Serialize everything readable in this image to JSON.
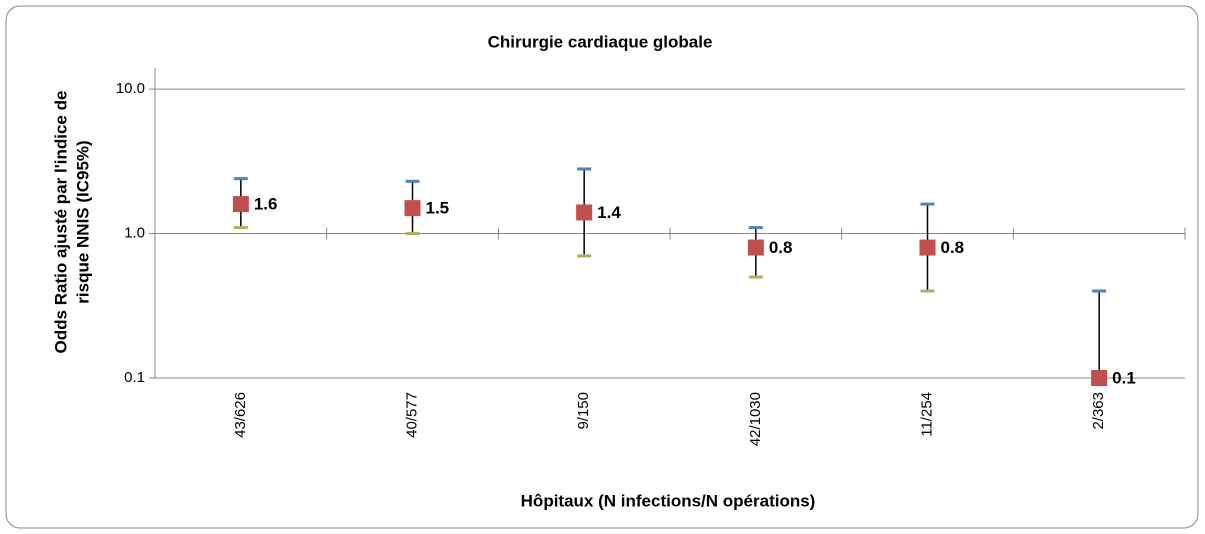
{
  "chart_data": {
    "type": "errorbar",
    "title": "Chirurgie cardiaque globale",
    "xlabel": "Hôpitaux (N infections/N opérations)",
    "ylabel": [
      "Odds Ratio ajusté par l'indice de",
      "risque NNIS (IC95%)"
    ],
    "categories": [
      "43/626",
      "40/577",
      "9/150",
      "42/1030",
      "11/254",
      "2/363"
    ],
    "values": [
      1.6,
      1.5,
      1.4,
      0.8,
      0.8,
      0.1
    ],
    "ci_upper": [
      2.4,
      2.3,
      2.8,
      1.1,
      1.6,
      0.4
    ],
    "ci_lower": [
      1.1,
      1.0,
      0.7,
      0.5,
      0.4,
      null
    ],
    "color": "#c0504d",
    "upper_color": "#4f81bd",
    "lower_color": "#9bbb59",
    "log_scale": true,
    "ylim": [
      0.1,
      14
    ],
    "yticks": [
      0.1,
      {
        "value": 1,
        "label": "1.0"
      },
      {
        "value": 10,
        "label": "10.0"
      }
    ],
    "grid": true
  }
}
